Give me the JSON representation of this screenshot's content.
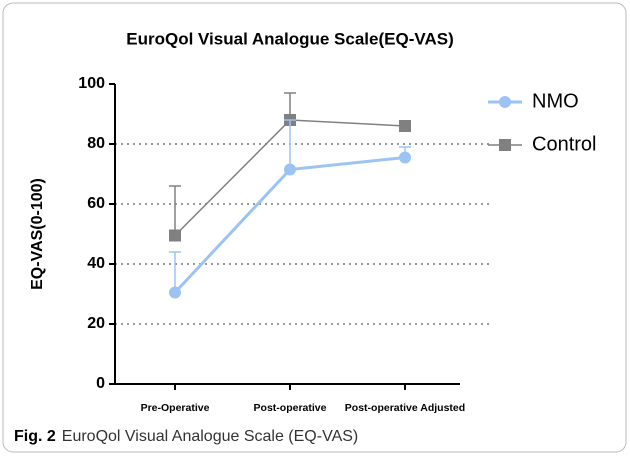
{
  "chart_data": {
    "type": "line",
    "title": "EuroQol Visual Analogue Scale(EQ-VAS)",
    "ylabel": "EQ-VAS(0-100)",
    "categories": [
      "Pre-Operative",
      "Post-operative",
      "Post-operative Adjusted"
    ],
    "series": [
      {
        "name": "NMO",
        "color": "#9dc3f5",
        "marker": "circle",
        "values": [
          30.5,
          71.5,
          75.5
        ],
        "errors": [
          13.5,
          16.5,
          3.5
        ]
      },
      {
        "name": "Control",
        "color": "#808080",
        "marker": "square",
        "values": [
          49.5,
          88,
          86
        ],
        "errors": [
          16.5,
          9,
          1.5
        ]
      }
    ],
    "ylim": [
      0,
      100
    ],
    "yticks": [
      0,
      20,
      40,
      60,
      80,
      100
    ],
    "grid": true,
    "legend": "right"
  },
  "caption": {
    "label": "Fig. 2",
    "text": "EuroQol Visual Analogue Scale (EQ-VAS)"
  }
}
